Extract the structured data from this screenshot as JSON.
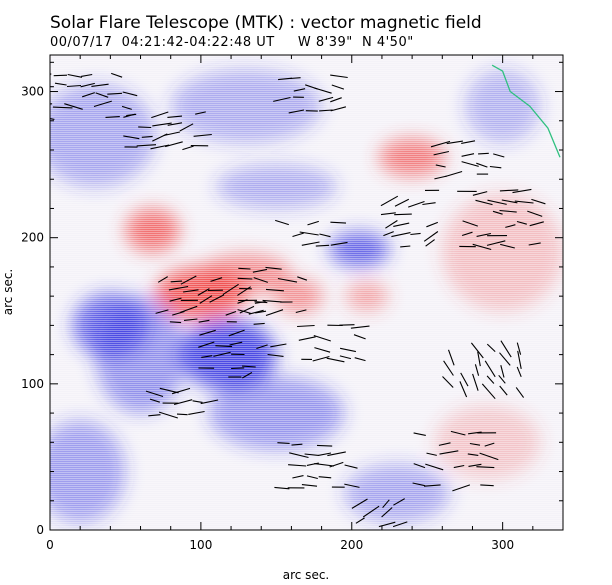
{
  "chart_data": {
    "type": "heatmap",
    "title": "Solar Flare Telescope (MTK) : vector magnetic field",
    "subtitle": "00/07/17  04:21:42-04:22:48 UT     W 8'39\"  N 4'50\"",
    "xlabel": "arc sec.",
    "ylabel": "arc sec.",
    "xlim": [
      0,
      340
    ],
    "ylim": [
      0,
      325
    ],
    "xticks": [
      0,
      100,
      200,
      300
    ],
    "yticks": [
      0,
      100,
      200,
      300
    ],
    "grid": false,
    "colors": {
      "positive_polarity": "#f04040",
      "negative_polarity": "#3030e0",
      "background": "#f4f2f8",
      "vectors": "#000000",
      "limb": "#30c080"
    },
    "polarity_regions": [
      {
        "sign": "positive",
        "x": 100,
        "y": 162,
        "rx": 30,
        "ry": 18,
        "strength": 1.0
      },
      {
        "sign": "positive",
        "x": 68,
        "y": 205,
        "rx": 18,
        "ry": 15,
        "strength": 0.85
      },
      {
        "sign": "positive",
        "x": 130,
        "y": 175,
        "rx": 30,
        "ry": 14,
        "strength": 0.6
      },
      {
        "sign": "positive",
        "x": 165,
        "y": 160,
        "rx": 16,
        "ry": 12,
        "strength": 0.55
      },
      {
        "sign": "positive",
        "x": 210,
        "y": 160,
        "rx": 14,
        "ry": 10,
        "strength": 0.45
      },
      {
        "sign": "positive",
        "x": 240,
        "y": 255,
        "rx": 22,
        "ry": 13,
        "strength": 0.75
      },
      {
        "sign": "positive",
        "x": 300,
        "y": 190,
        "rx": 40,
        "ry": 40,
        "strength": 0.2
      },
      {
        "sign": "positive",
        "x": 290,
        "y": 60,
        "rx": 35,
        "ry": 25,
        "strength": 0.15
      },
      {
        "sign": "negative",
        "x": 118,
        "y": 120,
        "rx": 32,
        "ry": 24,
        "strength": 1.0
      },
      {
        "sign": "negative",
        "x": 40,
        "y": 140,
        "rx": 25,
        "ry": 22,
        "strength": 0.8
      },
      {
        "sign": "negative",
        "x": 60,
        "y": 120,
        "rx": 30,
        "ry": 40,
        "strength": 0.5
      },
      {
        "sign": "negative",
        "x": 205,
        "y": 192,
        "rx": 20,
        "ry": 12,
        "strength": 0.85
      },
      {
        "sign": "negative",
        "x": 150,
        "y": 80,
        "rx": 45,
        "ry": 25,
        "strength": 0.45
      },
      {
        "sign": "negative",
        "x": 30,
        "y": 270,
        "rx": 40,
        "ry": 35,
        "strength": 0.35
      },
      {
        "sign": "negative",
        "x": 150,
        "y": 235,
        "rx": 40,
        "ry": 15,
        "strength": 0.3
      },
      {
        "sign": "negative",
        "x": 130,
        "y": 290,
        "rx": 50,
        "ry": 25,
        "strength": 0.3
      },
      {
        "sign": "negative",
        "x": 230,
        "y": 25,
        "rx": 35,
        "ry": 20,
        "strength": 0.35
      },
      {
        "sign": "negative",
        "x": 20,
        "y": 40,
        "rx": 30,
        "ry": 35,
        "strength": 0.4
      },
      {
        "sign": "negative",
        "x": 300,
        "y": 290,
        "rx": 25,
        "ry": 25,
        "strength": 0.25
      }
    ],
    "vector_clusters": [
      {
        "x": 28,
        "y": 298,
        "w": 60,
        "h": 30,
        "angle": 0
      },
      {
        "x": 80,
        "y": 275,
        "w": 50,
        "h": 25,
        "angle": 10
      },
      {
        "x": 110,
        "y": 160,
        "w": 70,
        "h": 35,
        "angle": 15
      },
      {
        "x": 150,
        "y": 165,
        "w": 40,
        "h": 30,
        "angle": 0
      },
      {
        "x": 130,
        "y": 120,
        "w": 50,
        "h": 30,
        "angle": 10
      },
      {
        "x": 190,
        "y": 130,
        "w": 40,
        "h": 25,
        "angle": 0
      },
      {
        "x": 175,
        "y": 205,
        "w": 40,
        "h": 20,
        "angle": 0
      },
      {
        "x": 240,
        "y": 215,
        "w": 30,
        "h": 40,
        "angle": 20
      },
      {
        "x": 300,
        "y": 215,
        "w": 45,
        "h": 40,
        "angle": 0
      },
      {
        "x": 280,
        "y": 255,
        "w": 40,
        "h": 25,
        "angle": 0
      },
      {
        "x": 290,
        "y": 110,
        "w": 50,
        "h": 30,
        "angle": -60
      },
      {
        "x": 270,
        "y": 50,
        "w": 50,
        "h": 40,
        "angle": 0
      },
      {
        "x": 180,
        "y": 45,
        "w": 50,
        "h": 30,
        "angle": 0
      },
      {
        "x": 220,
        "y": 15,
        "w": 30,
        "h": 20,
        "angle": 30
      },
      {
        "x": 90,
        "y": 90,
        "w": 40,
        "h": 20,
        "angle": 0
      },
      {
        "x": 175,
        "y": 300,
        "w": 40,
        "h": 25,
        "angle": 0
      }
    ],
    "limb_curve": [
      [
        293,
        318
      ],
      [
        300,
        314
      ],
      [
        305,
        300
      ],
      [
        318,
        290
      ],
      [
        330,
        275
      ],
      [
        338,
        255
      ]
    ]
  }
}
